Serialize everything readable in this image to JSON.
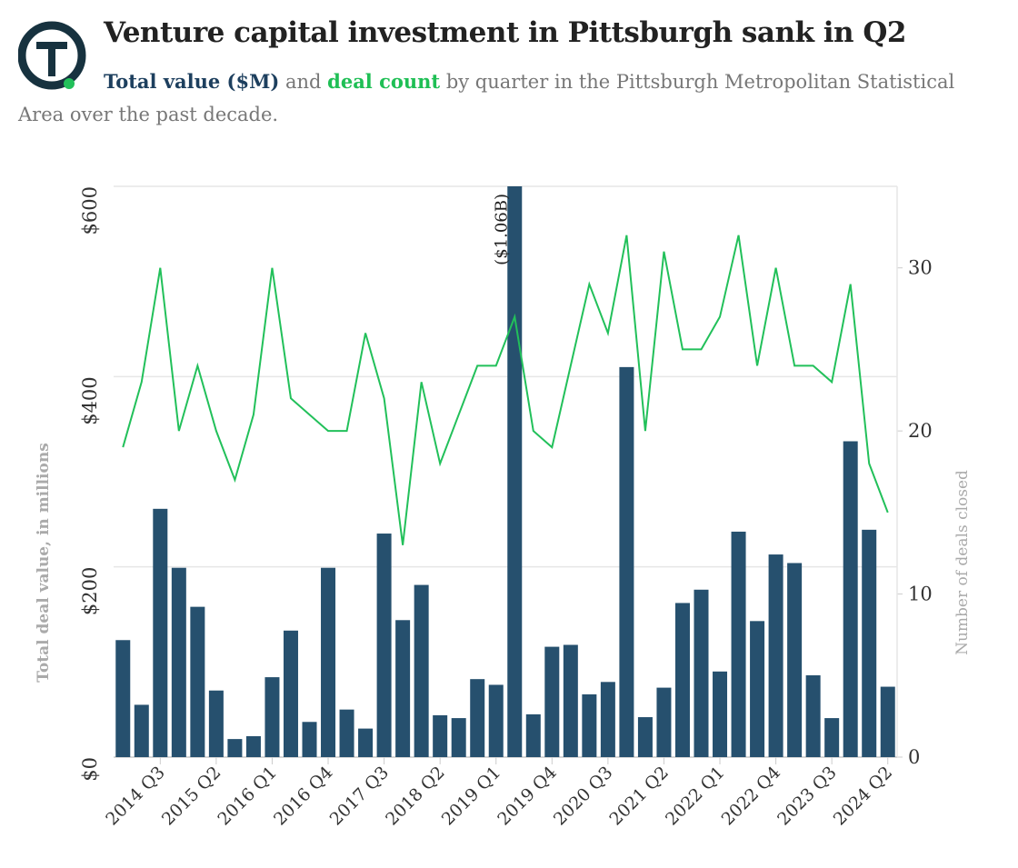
{
  "chart_data": {
    "type": "bar",
    "title": "Venture capital investment in Pittsburgh sank in Q2",
    "subtitle_parts": [
      "and",
      "by quarter in the Pittsburgh Metropolitan Statistical Area over the past decade."
    ],
    "ylabel": "Total deal value, in millions",
    "y2label": "Number of deals closed",
    "categories": [
      null,
      null,
      "2014 Q3",
      null,
      null,
      "2015 Q2",
      null,
      null,
      "2016 Q1",
      null,
      null,
      "2016 Q4",
      null,
      null,
      "2017 Q3",
      null,
      null,
      "2018 Q2",
      null,
      null,
      "2019 Q1",
      null,
      null,
      "2019 Q4",
      null,
      null,
      "2020 Q3",
      null,
      null,
      "2021 Q2",
      null,
      null,
      "2022 Q1",
      null,
      null,
      "2022 Q4",
      null,
      null,
      "2023 Q3",
      null,
      null,
      "2024 Q2"
    ],
    "series": [
      {
        "name": "Total value ($M)",
        "type": "bar",
        "color": "#26506e",
        "values": [
          123,
          55,
          261,
          199,
          158,
          70,
          19,
          22,
          84,
          133,
          37,
          199,
          50,
          30,
          235,
          144,
          181,
          44,
          41,
          82,
          76,
          1060,
          45,
          116,
          118,
          66,
          79,
          410,
          42,
          73,
          162,
          176,
          90,
          237,
          143,
          213,
          204,
          86,
          41,
          332,
          239,
          74
        ],
        "value_labels": [
          null,
          null,
          null,
          null,
          null,
          null,
          null,
          null,
          null,
          null,
          null,
          null,
          null,
          null,
          null,
          null,
          null,
          null,
          null,
          null,
          null,
          "($1.06B)",
          null,
          null,
          null,
          null,
          null,
          null,
          null,
          null,
          null,
          null,
          null,
          null,
          null,
          null,
          null,
          null,
          null,
          null,
          null,
          null
        ]
      },
      {
        "name": "deal count",
        "type": "line",
        "axis": "y2",
        "color": "#22c05a",
        "values": [
          19,
          23,
          30,
          20,
          24,
          20,
          17,
          21,
          30,
          22,
          21,
          20,
          20,
          26,
          22,
          13,
          23,
          18,
          21,
          24,
          24,
          27,
          20,
          19,
          24,
          29,
          26,
          32,
          20,
          31,
          25,
          25,
          27,
          32,
          24,
          30,
          24,
          24,
          23,
          29,
          18,
          15
        ]
      }
    ],
    "ylim": [
      0,
      600
    ],
    "yticks": [
      {
        "value": 0,
        "label": "$0"
      },
      {
        "value": 200,
        "label": "$200"
      },
      {
        "value": 400,
        "label": "$400"
      },
      {
        "value": 600,
        "label": "$600"
      }
    ],
    "y2lim": [
      0,
      35
    ],
    "y2ticks": [
      0,
      10,
      20,
      30
    ],
    "grid": true
  }
}
